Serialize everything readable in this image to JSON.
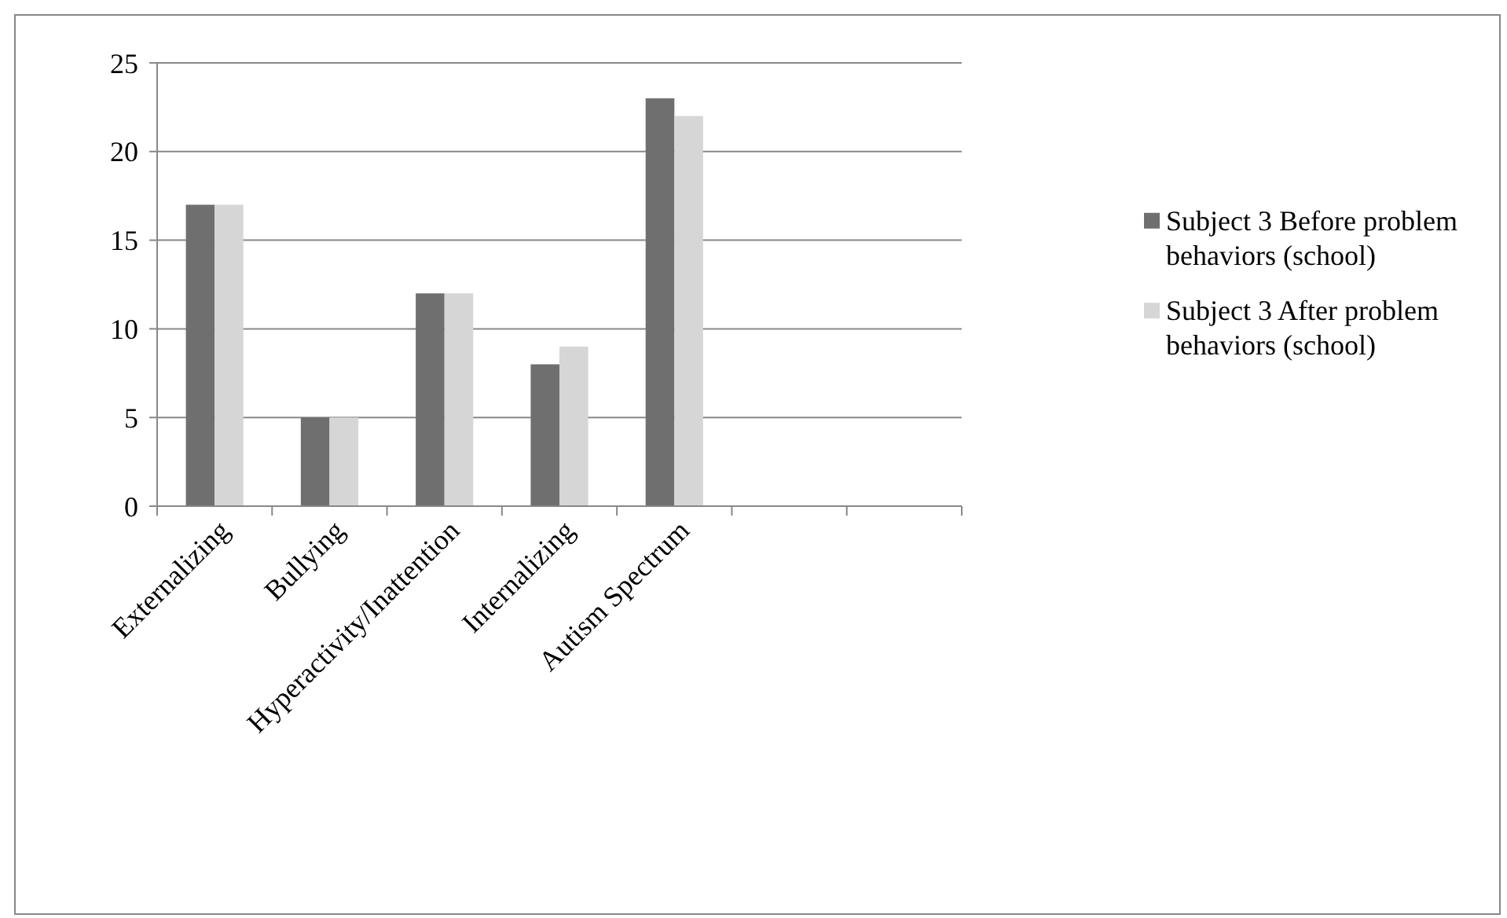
{
  "chart_data": {
    "type": "bar",
    "categories": [
      "Externalizing",
      "Bullying",
      "Hyperactivity/Inattention",
      "Internalizing",
      "Autism Spectrum",
      null,
      null
    ],
    "series": [
      {
        "name": "Subject 3 Before problem behaviors (school)",
        "color": "#6f6f6f",
        "values": [
          17,
          5,
          12,
          8,
          23,
          null,
          null
        ]
      },
      {
        "name": "Subject 3 After problem behaviors (school)",
        "color": "#d6d6d6",
        "values": [
          17,
          5,
          12,
          9,
          22,
          null,
          null
        ]
      }
    ],
    "ylim": [
      0,
      25
    ],
    "yticks": [
      0,
      5,
      10,
      15,
      20,
      25
    ],
    "grid": "y",
    "legend": "right"
  }
}
